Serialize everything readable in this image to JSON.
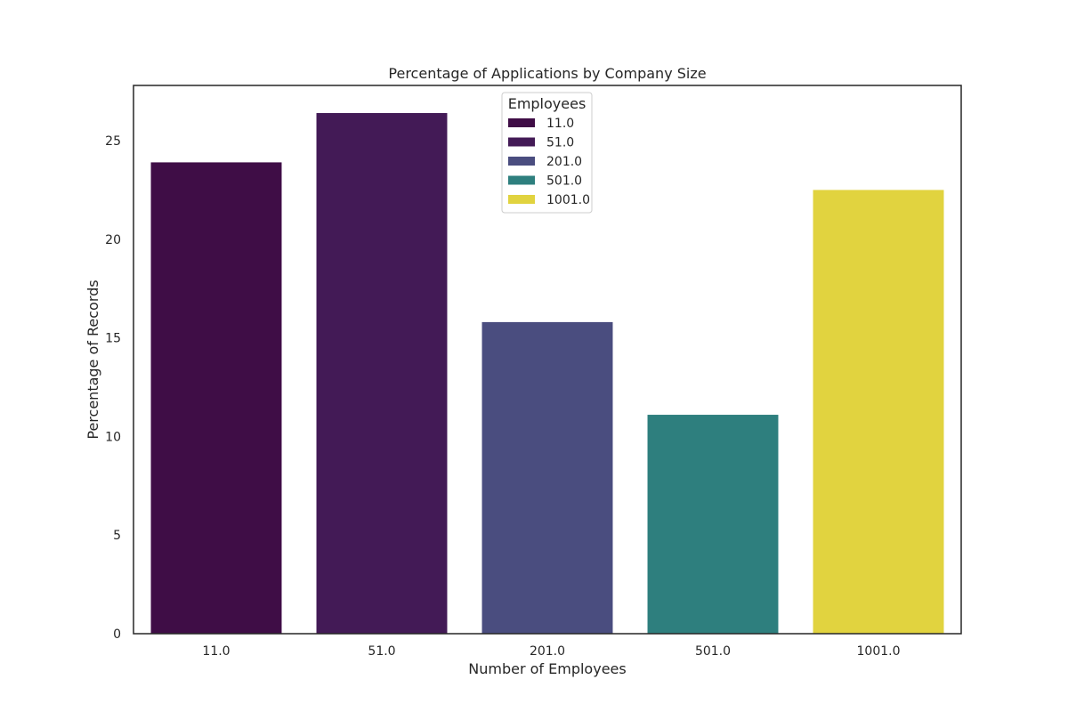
{
  "chart_data": {
    "type": "bar",
    "title": "Percentage of Applications by Company Size",
    "xlabel": "Number of Employees",
    "ylabel": "Percentage of Records",
    "categories": [
      "11.0",
      "51.0",
      "201.0",
      "501.0",
      "1001.0"
    ],
    "values": [
      23.9,
      26.4,
      15.8,
      11.1,
      22.5
    ],
    "colors": [
      "#3f0d46",
      "#431a56",
      "#4a4d7f",
      "#2e7f7e",
      "#e1d33f"
    ],
    "ylim": [
      0,
      27.8
    ],
    "yticks": [
      0,
      5,
      10,
      15,
      20,
      25
    ],
    "grid": false,
    "legend": {
      "title": "Employees",
      "placement": "top-center",
      "entries": [
        "11.0",
        "51.0",
        "201.0",
        "501.0",
        "1001.0"
      ]
    }
  }
}
